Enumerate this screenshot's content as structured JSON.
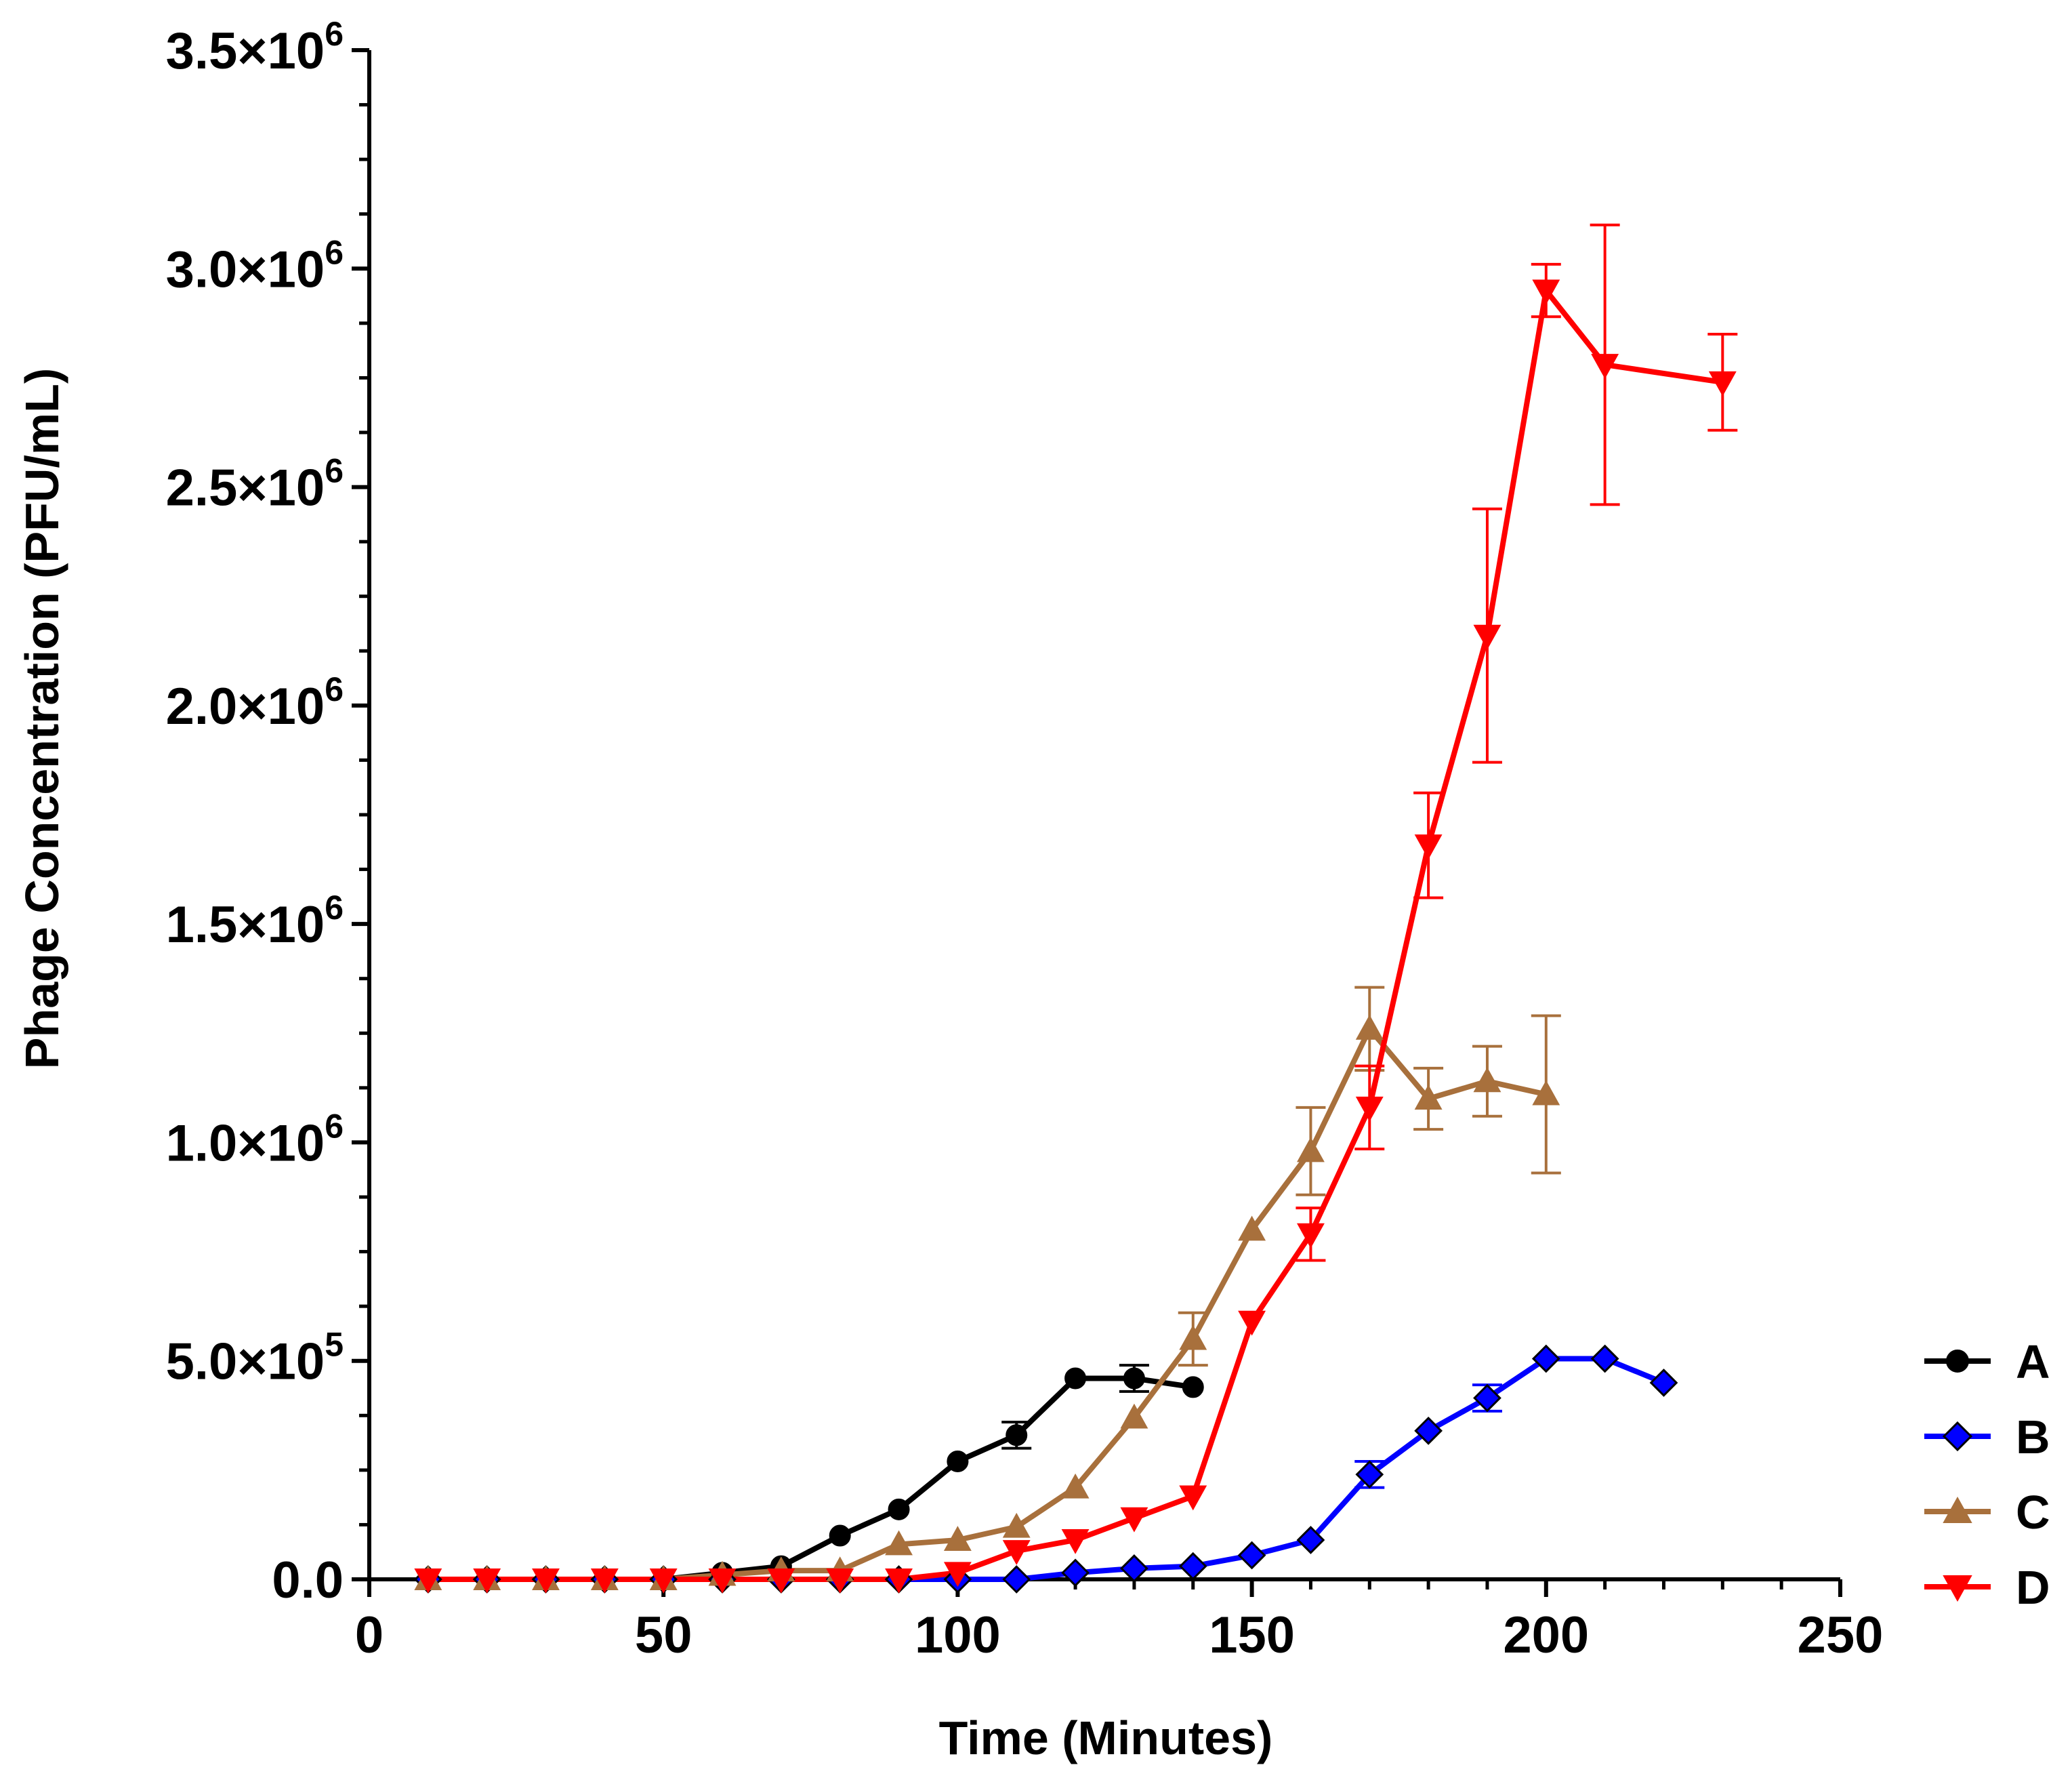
{
  "chart_data": {
    "type": "line",
    "title": "",
    "xlabel": "Time (Minutes)",
    "ylabel": "Phage Concentration (PFU/mL)",
    "xlim": [
      0,
      250
    ],
    "ylim": [
      0,
      3500000
    ],
    "x_ticks": [
      0,
      50,
      100,
      150,
      200,
      250
    ],
    "x_tick_labels": [
      "0",
      "50",
      "100",
      "150",
      "200",
      "250"
    ],
    "y_ticks": [
      {
        "value": 0,
        "mantissa": "0.0",
        "exponent": ""
      },
      {
        "value": 500000,
        "mantissa": "5.0×10",
        "exponent": "5"
      },
      {
        "value": 1000000,
        "mantissa": "1.0×10",
        "exponent": "6"
      },
      {
        "value": 1500000,
        "mantissa": "1.5×10",
        "exponent": "6"
      },
      {
        "value": 2000000,
        "mantissa": "2.0×10",
        "exponent": "6"
      },
      {
        "value": 2500000,
        "mantissa": "2.5×10",
        "exponent": "6"
      },
      {
        "value": 3000000,
        "mantissa": "3.0×10",
        "exponent": "6"
      },
      {
        "value": 3500000,
        "mantissa": "3.5×10",
        "exponent": "6"
      }
    ],
    "grid": false,
    "legend_position": "right",
    "series": [
      {
        "name": "A",
        "color": "#000000",
        "marker": "circle",
        "x": [
          10,
          20,
          30,
          40,
          50,
          60,
          70,
          80,
          90,
          100,
          110,
          120,
          130,
          140
        ],
        "y": [
          0,
          0,
          0,
          0,
          0,
          15000,
          30000,
          100000,
          160000,
          270000,
          330000,
          460000,
          460000,
          440000
        ],
        "err": [
          0,
          0,
          0,
          0,
          0,
          0,
          0,
          0,
          0,
          0,
          30000,
          0,
          30000,
          0
        ]
      },
      {
        "name": "B",
        "color": "#0000ff",
        "marker": "diamond",
        "x": [
          10,
          20,
          30,
          40,
          50,
          60,
          70,
          80,
          90,
          100,
          110,
          120,
          130,
          140,
          150,
          160,
          170,
          180,
          190,
          200,
          210,
          220
        ],
        "y": [
          0,
          0,
          0,
          0,
          0,
          0,
          0,
          0,
          0,
          0,
          0,
          15000,
          25000,
          30000,
          55000,
          90000,
          240000,
          340000,
          415000,
          505000,
          505000,
          450000
        ],
        "err": [
          0,
          0,
          0,
          0,
          0,
          0,
          0,
          0,
          0,
          0,
          0,
          0,
          0,
          0,
          0,
          0,
          30000,
          0,
          30000,
          0,
          0,
          0
        ]
      },
      {
        "name": "C",
        "color": "#a8703c",
        "marker": "triangle-up",
        "x": [
          10,
          20,
          30,
          40,
          50,
          60,
          70,
          80,
          90,
          100,
          110,
          120,
          130,
          140,
          150,
          160,
          170,
          180,
          190,
          200
        ],
        "y": [
          0,
          0,
          0,
          0,
          0,
          10000,
          20000,
          20000,
          80000,
          90000,
          120000,
          210000,
          370000,
          550000,
          800000,
          980000,
          1260000,
          1100000,
          1140000,
          1110000
        ],
        "err": [
          0,
          0,
          0,
          0,
          0,
          0,
          0,
          0,
          0,
          0,
          0,
          0,
          0,
          60000,
          0,
          100000,
          95000,
          70000,
          80000,
          180000
        ]
      },
      {
        "name": "D",
        "color": "#ff0000",
        "marker": "triangle-down",
        "x": [
          10,
          20,
          30,
          40,
          50,
          60,
          70,
          80,
          90,
          100,
          110,
          120,
          130,
          140,
          150,
          160,
          170,
          180,
          190,
          200,
          210,
          230
        ],
        "y": [
          0,
          0,
          0,
          0,
          0,
          0,
          0,
          0,
          0,
          15000,
          65000,
          90000,
          140000,
          190000,
          590000,
          790000,
          1080000,
          1680000,
          2160000,
          2950000,
          2780000,
          2740000
        ],
        "err": [
          0,
          0,
          0,
          0,
          0,
          0,
          0,
          0,
          0,
          0,
          0,
          0,
          0,
          0,
          0,
          60000,
          95000,
          120000,
          290000,
          60000,
          320000,
          110000
        ]
      }
    ]
  }
}
